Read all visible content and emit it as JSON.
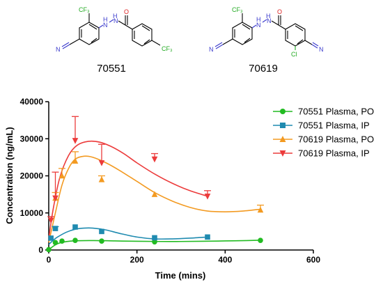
{
  "compounds": [
    {
      "id": "70551",
      "atoms": {
        "cf3_top": "CF₃",
        "cf3_ring": "CF₃",
        "nitrile": "N",
        "carbonyl_o": "O",
        "nh1": "H",
        "nh2": "H",
        "nh1_n": "N",
        "nh2_n": "N"
      }
    },
    {
      "id": "70619",
      "atoms": {
        "cf3_top": "CF₃",
        "cl": "Cl",
        "nitrile_left": "N",
        "nitrile_right": "N",
        "carbonyl_o": "O",
        "nh1": "H",
        "nh2": "H",
        "nh1_n": "N",
        "nh2_n": "N"
      }
    }
  ],
  "chart_data": {
    "type": "scatter",
    "xlabel": "Time (mins)",
    "ylabel": "Concentration (ng/mL)",
    "xlim": [
      0,
      600
    ],
    "ylim": [
      0,
      40000
    ],
    "xticks": [
      0,
      200,
      400,
      600
    ],
    "yticks": [
      0,
      10000,
      20000,
      30000,
      40000
    ],
    "xtick_labels": [
      "0",
      "200",
      "400",
      "600"
    ],
    "ytick_labels": [
      "0",
      "10000",
      "20000",
      "30000",
      "40000"
    ],
    "grid": false,
    "legend_position": "right",
    "series": [
      {
        "name": "70551 Plasma, PO",
        "color": "#22bb22",
        "marker": "circle",
        "x": [
          0,
          15,
          30,
          60,
          120,
          240,
          480
        ],
        "y": [
          100,
          2000,
          2400,
          2600,
          2400,
          2200,
          2600
        ],
        "err": [
          0,
          0,
          0,
          0,
          0,
          0,
          0
        ],
        "curve_x": [
          0,
          20,
          50,
          100,
          150,
          200,
          250,
          300,
          350,
          400,
          450,
          480
        ],
        "curve_y": [
          100,
          1700,
          2400,
          2550,
          2450,
          2350,
          2300,
          2300,
          2350,
          2450,
          2550,
          2650
        ]
      },
      {
        "name": "70551 Plasma, IP",
        "color": "#1f8bb0",
        "marker": "square",
        "x": [
          5,
          15,
          60,
          120,
          240,
          360
        ],
        "y": [
          3200,
          5800,
          6200,
          5000,
          3300,
          3500
        ],
        "err": [
          0,
          500,
          0,
          0,
          0,
          0
        ],
        "curve_x": [
          0,
          10,
          20,
          40,
          60,
          80,
          100,
          130,
          160,
          200,
          240,
          280,
          320,
          360
        ],
        "curve_y": [
          1500,
          2600,
          3500,
          4800,
          5600,
          5900,
          5900,
          5400,
          4500,
          3500,
          3000,
          3000,
          3200,
          3500
        ]
      },
      {
        "name": "70619 Plasma, PO",
        "color": "#f39a21",
        "marker": "triangle-up",
        "x": [
          15,
          30,
          60,
          120,
          240,
          480
        ],
        "y": [
          14000,
          20000,
          24000,
          19000,
          15000,
          10800
        ],
        "err": [
          1500,
          2000,
          2500,
          1000,
          0,
          1300
        ],
        "curve_x": [
          0,
          15,
          30,
          45,
          60,
          80,
          100,
          130,
          160,
          200,
          240,
          280,
          320,
          360,
          400,
          440,
          480
        ],
        "curve_y": [
          2000,
          10000,
          17500,
          22000,
          24500,
          25300,
          25000,
          23500,
          21500,
          18500,
          15500,
          13200,
          11500,
          10500,
          10300,
          10500,
          11000
        ]
      },
      {
        "name": "70619 Plasma, IP",
        "color": "#ec3b3b",
        "marker": "triangle-down",
        "x": [
          5,
          15,
          60,
          120,
          240,
          360
        ],
        "y": [
          8000,
          14000,
          29500,
          23500,
          24500,
          14500
        ],
        "err": [
          1000,
          7000,
          6500,
          5000,
          1500,
          1500
        ],
        "curve_x": [
          0,
          10,
          25,
          45,
          65,
          90,
          115,
          140,
          170,
          200,
          240,
          280,
          320,
          360
        ],
        "curve_y": [
          3000,
          11000,
          19500,
          25500,
          28300,
          29300,
          29100,
          28000,
          26000,
          23500,
          20500,
          18000,
          16000,
          14500
        ]
      }
    ]
  }
}
